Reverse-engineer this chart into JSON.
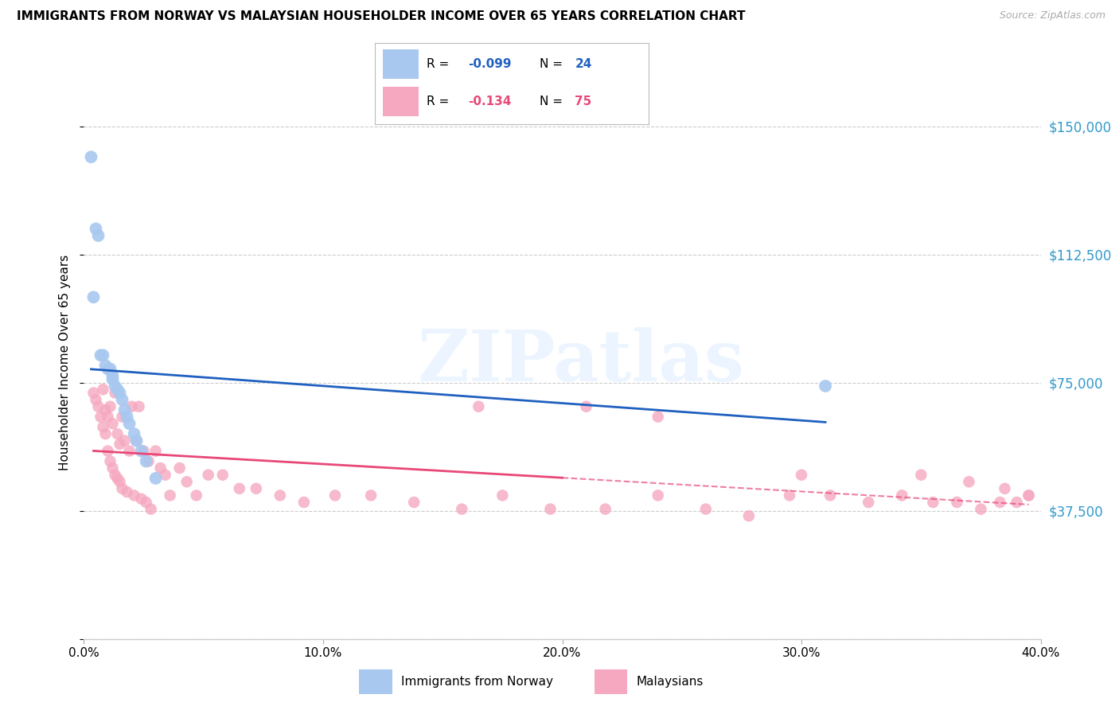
{
  "title": "IMMIGRANTS FROM NORWAY VS MALAYSIAN HOUSEHOLDER INCOME OVER 65 YEARS CORRELATION CHART",
  "source": "Source: ZipAtlas.com",
  "ylabel": "Householder Income Over 65 years",
  "xlim": [
    0.0,
    0.4
  ],
  "ylim": [
    0,
    162000
  ],
  "xtick_vals": [
    0.0,
    0.1,
    0.2,
    0.3,
    0.4
  ],
  "xtick_labels": [
    "0.0%",
    "10.0%",
    "20.0%",
    "30.0%",
    "40.0%"
  ],
  "ytick_vals": [
    0,
    37500,
    75000,
    112500,
    150000
  ],
  "ytick_labels": [
    "",
    "$37,500",
    "$75,000",
    "$112,500",
    "$150,000"
  ],
  "norway_color": "#a8c8f0",
  "malaysia_color": "#f5a8c0",
  "norway_line": "#2060c0",
  "malaysia_line": "#e84878",
  "watermark": "ZIPatlas",
  "norway_R": "-0.099",
  "norway_N": "24",
  "malaysia_R": "-0.134",
  "malaysia_N": "75",
  "norway_x": [
    0.003,
    0.004,
    0.005,
    0.006,
    0.007,
    0.008,
    0.009,
    0.01,
    0.011,
    0.012,
    0.012,
    0.013,
    0.014,
    0.015,
    0.016,
    0.017,
    0.018,
    0.019,
    0.021,
    0.022,
    0.024,
    0.026,
    0.03,
    0.31
  ],
  "norway_y": [
    141000,
    100000,
    120000,
    118000,
    83000,
    83000,
    80000,
    79000,
    79000,
    77000,
    76000,
    74000,
    73000,
    72000,
    70000,
    67000,
    65000,
    63000,
    60000,
    58000,
    55000,
    52000,
    47000,
    74000
  ],
  "malaysia_x": [
    0.004,
    0.005,
    0.006,
    0.007,
    0.008,
    0.008,
    0.009,
    0.009,
    0.01,
    0.01,
    0.011,
    0.011,
    0.012,
    0.012,
    0.013,
    0.013,
    0.014,
    0.014,
    0.015,
    0.015,
    0.016,
    0.016,
    0.017,
    0.018,
    0.019,
    0.02,
    0.021,
    0.022,
    0.023,
    0.024,
    0.025,
    0.026,
    0.027,
    0.028,
    0.03,
    0.032,
    0.034,
    0.036,
    0.04,
    0.043,
    0.047,
    0.052,
    0.058,
    0.065,
    0.072,
    0.082,
    0.092,
    0.105,
    0.12,
    0.138,
    0.158,
    0.175,
    0.195,
    0.218,
    0.24,
    0.26,
    0.278,
    0.295,
    0.312,
    0.328,
    0.342,
    0.355,
    0.365,
    0.375,
    0.383,
    0.39,
    0.395,
    0.21,
    0.165,
    0.24,
    0.3,
    0.35,
    0.37,
    0.385,
    0.395
  ],
  "malaysia_y": [
    72000,
    70000,
    68000,
    65000,
    62000,
    73000,
    67000,
    60000,
    65000,
    55000,
    68000,
    52000,
    63000,
    50000,
    72000,
    48000,
    60000,
    47000,
    57000,
    46000,
    65000,
    44000,
    58000,
    43000,
    55000,
    68000,
    42000,
    58000,
    68000,
    41000,
    55000,
    40000,
    52000,
    38000,
    55000,
    50000,
    48000,
    42000,
    50000,
    46000,
    42000,
    48000,
    48000,
    44000,
    44000,
    42000,
    40000,
    42000,
    42000,
    40000,
    38000,
    42000,
    38000,
    38000,
    42000,
    38000,
    36000,
    42000,
    42000,
    40000,
    42000,
    40000,
    40000,
    38000,
    40000,
    40000,
    42000,
    68000,
    68000,
    65000,
    48000,
    48000,
    46000,
    44000,
    42000
  ]
}
